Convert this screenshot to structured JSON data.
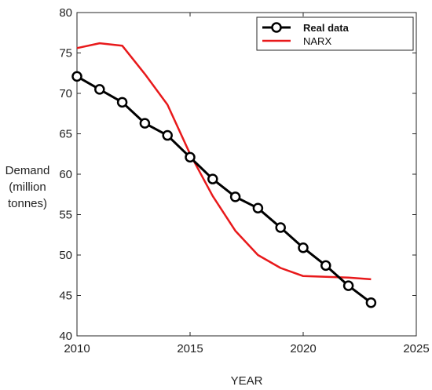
{
  "chart_data": {
    "type": "line",
    "title": "",
    "xlabel": "YEAR",
    "ylabel": [
      "Demand",
      "(million",
      "tonnes)"
    ],
    "xlim": [
      2010,
      2025
    ],
    "ylim": [
      40,
      80
    ],
    "xticks": [
      2010,
      2015,
      2020,
      2025
    ],
    "yticks": [
      40,
      45,
      50,
      55,
      60,
      65,
      70,
      75,
      80
    ],
    "grid": false,
    "legend_position": "top-right",
    "series": [
      {
        "name": "Real data",
        "color": "#000000",
        "marker": "circle",
        "x": [
          2010,
          2011,
          2012,
          2013,
          2014,
          2015,
          2016,
          2017,
          2018,
          2019,
          2020,
          2021,
          2022,
          2023
        ],
        "y": [
          72.1,
          70.5,
          68.9,
          66.3,
          64.8,
          62.1,
          59.4,
          57.2,
          55.8,
          53.4,
          50.9,
          48.7,
          46.2,
          44.1
        ]
      },
      {
        "name": "NARX",
        "color": "#e8191b",
        "marker": "none",
        "x": [
          2010,
          2011,
          2012,
          2013,
          2014,
          2015,
          2016,
          2017,
          2018,
          2019,
          2020,
          2021,
          2022,
          2023
        ],
        "y": [
          75.6,
          76.2,
          75.9,
          72.4,
          68.6,
          62.5,
          57.3,
          53.0,
          50.0,
          48.4,
          47.4,
          47.3,
          47.2,
          47.0
        ]
      }
    ]
  }
}
